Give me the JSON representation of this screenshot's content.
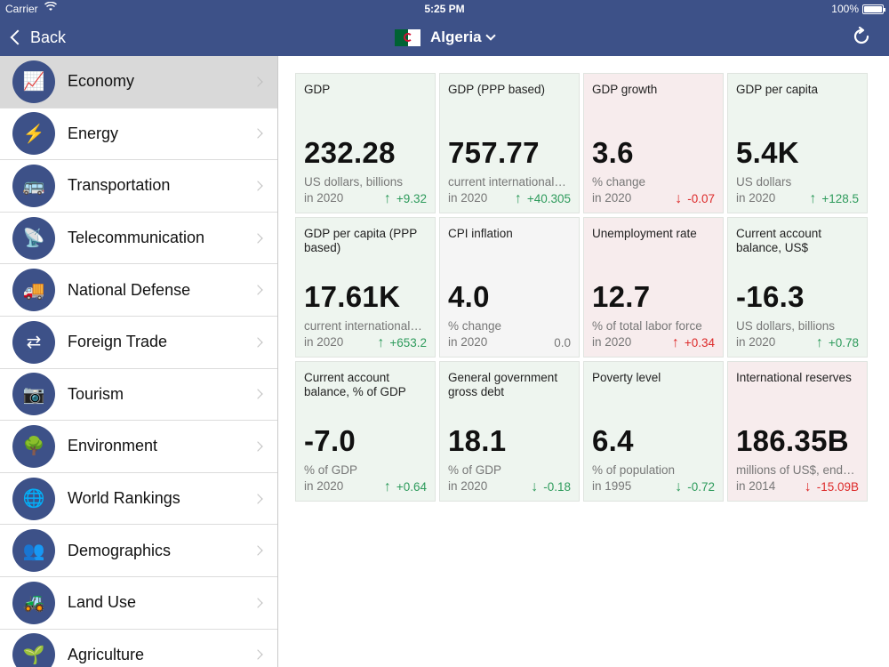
{
  "status": {
    "carrier": "Carrier",
    "time": "5:25 PM",
    "battery": "100%"
  },
  "nav": {
    "back_label": "Back",
    "country": "Algeria"
  },
  "sidebar": {
    "items": [
      {
        "label": "Economy",
        "icon": "chart-icon",
        "glyph": "📈"
      },
      {
        "label": "Energy",
        "icon": "lightning-icon",
        "glyph": "⚡"
      },
      {
        "label": "Transportation",
        "icon": "bus-icon",
        "glyph": "🚌"
      },
      {
        "label": "Telecommunication",
        "icon": "satellite-dish-icon",
        "glyph": "📡"
      },
      {
        "label": "National Defense",
        "icon": "military-truck-icon",
        "glyph": "🚚"
      },
      {
        "label": "Foreign Trade",
        "icon": "trade-exchange-icon",
        "glyph": "⇄"
      },
      {
        "label": "Tourism",
        "icon": "camera-icon",
        "glyph": "📷"
      },
      {
        "label": "Environment",
        "icon": "tree-icon",
        "glyph": "🌳"
      },
      {
        "label": "World Rankings",
        "icon": "globe-icon",
        "glyph": "🌐"
      },
      {
        "label": "Demographics",
        "icon": "people-icon",
        "glyph": "👥"
      },
      {
        "label": "Land Use",
        "icon": "tractor-icon",
        "glyph": "🚜"
      },
      {
        "label": "Agriculture",
        "icon": "leaf-icon",
        "glyph": "🌱"
      }
    ]
  },
  "colors": {
    "nav": "#3d5188",
    "green": "#2e9b5c",
    "red": "#dd2b2b"
  },
  "cards": [
    {
      "title": "GDP",
      "value": "232.28",
      "unit": "US dollars, billions",
      "year": "in 2020",
      "arrow": "↑",
      "delta": "+9.32",
      "tone": "green"
    },
    {
      "title": "GDP (PPP based)",
      "value": "757.77",
      "unit": "current international…",
      "year": "in 2020",
      "arrow": "↑",
      "delta": "+40.305",
      "tone": "green"
    },
    {
      "title": "GDP growth",
      "value": "3.6",
      "unit": "% change",
      "year": "in 2020",
      "arrow": "↓",
      "delta": "-0.07",
      "tone": "red"
    },
    {
      "title": "GDP per capita",
      "value": "5.4K",
      "unit": "US dollars",
      "year": "in 2020",
      "arrow": "↑",
      "delta": "+128.5",
      "tone": "green"
    },
    {
      "title": "GDP per capita (PPP based)",
      "value": "17.61K",
      "unit": "current international…",
      "year": "in 2020",
      "arrow": "↑",
      "delta": "+653.2",
      "tone": "green"
    },
    {
      "title": "CPI inflation",
      "value": "4.0",
      "unit": "% change",
      "year": "in 2020",
      "arrow": "",
      "delta": "0.0",
      "tone": "gray"
    },
    {
      "title": "Unemployment rate",
      "value": "12.7",
      "unit": "% of total labor force",
      "year": "in 2020",
      "arrow": "↑",
      "delta": "+0.34",
      "tone": "red"
    },
    {
      "title": "Current account balance, US$",
      "value": "-16.3",
      "unit": "US dollars, billions",
      "year": "in 2020",
      "arrow": "↑",
      "delta": "+0.78",
      "tone": "green"
    },
    {
      "title": "Current account balance, % of GDP",
      "value": "-7.0",
      "unit": "% of GDP",
      "year": "in 2020",
      "arrow": "↑",
      "delta": "+0.64",
      "tone": "green"
    },
    {
      "title": "General government gross debt",
      "value": "18.1",
      "unit": "% of GDP",
      "year": "in 2020",
      "arrow": "↓",
      "delta": "-0.18",
      "tone": "green"
    },
    {
      "title": "Poverty level",
      "value": "6.4",
      "unit": "% of population",
      "year": "in 1995",
      "arrow": "↓",
      "delta": "-0.72",
      "tone": "green"
    },
    {
      "title": "International reserves",
      "value": "186.35B",
      "unit": "millions of US$, end…",
      "year": "in 2014",
      "arrow": "↓",
      "delta": "-15.09B",
      "tone": "red"
    }
  ]
}
